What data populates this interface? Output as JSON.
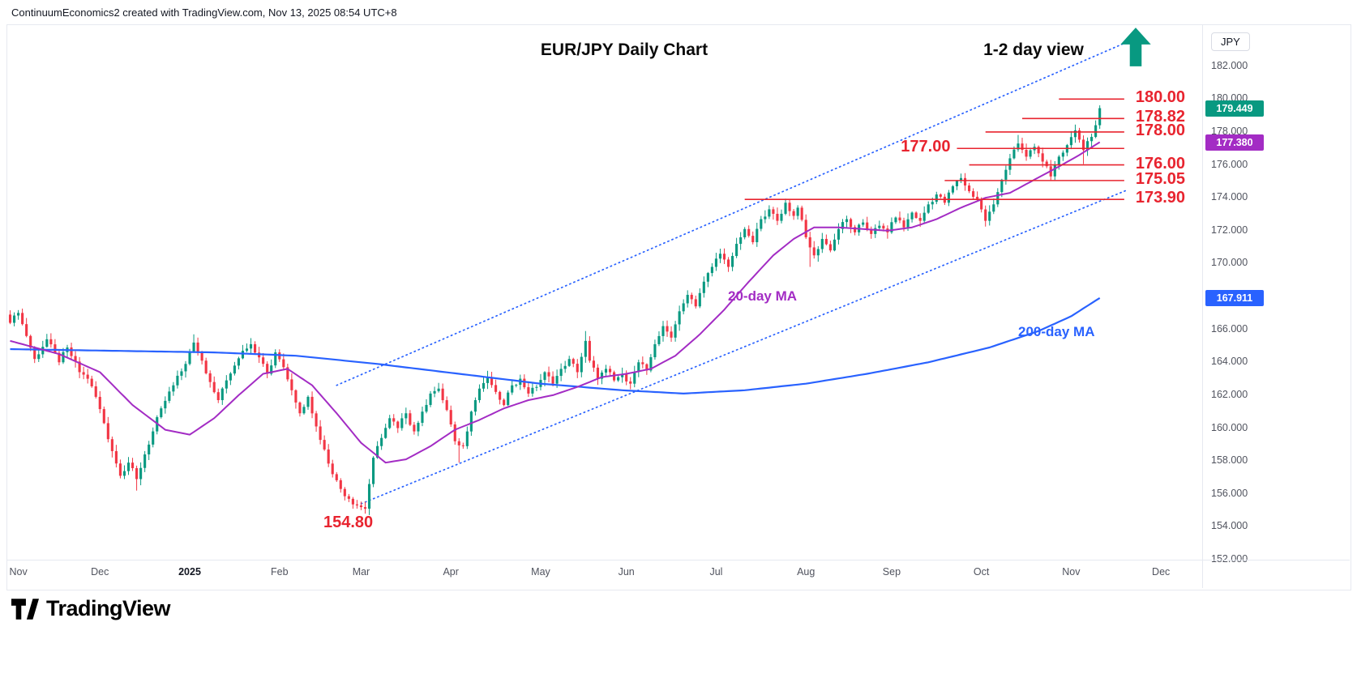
{
  "header": {
    "attribution": "ContinuumEconomics2 created with TradingView.com, Nov 13, 2025 08:54 UTC+8"
  },
  "chart": {
    "title": "EUR/JPY Daily Chart",
    "view_note": "1-2 day view",
    "ma20_label": "20-day MA",
    "ma200_label": "200-day MA",
    "low_label": "154.80",
    "currency": "JPY"
  },
  "footer": {
    "logo_text": "TradingView"
  },
  "colors": {
    "up": "#089981",
    "down": "#f23645",
    "ma20": "#a32cc4",
    "ma200": "#2962ff",
    "trend": "#2962ff",
    "level": "#e8242f",
    "axis_text": "#50535e"
  },
  "axis_badges": [
    {
      "name": "last-price-badge",
      "label": "179.449",
      "price": 179.449,
      "color": "#089981"
    },
    {
      "name": "ma20-value-badge",
      "label": "177.380",
      "price": 177.38,
      "color": "#a32cc4"
    },
    {
      "name": "ma200-value-badge",
      "label": "167.911",
      "price": 167.911,
      "color": "#2962ff"
    }
  ],
  "chart_data": {
    "type": "candlestick",
    "symbol": "EUR/JPY",
    "timeframe": "Daily",
    "last_price": 179.449,
    "ma20_value": 177.38,
    "ma200_value": 167.911,
    "key_low": 154.8,
    "y_axis": {
      "min": 152,
      "max": 184.3,
      "ticks": [
        182,
        180,
        178,
        176,
        174,
        172,
        170,
        168,
        166,
        164,
        162,
        160,
        158,
        156,
        154,
        152
      ]
    },
    "x_labels": [
      {
        "label": "Nov",
        "day": 2
      },
      {
        "label": "Dec",
        "day": 22
      },
      {
        "label": "2025",
        "day": 44,
        "bold": true
      },
      {
        "label": "Feb",
        "day": 66
      },
      {
        "label": "Mar",
        "day": 86
      },
      {
        "label": "Apr",
        "day": 108
      },
      {
        "label": "May",
        "day": 130
      },
      {
        "label": "Jun",
        "day": 151
      },
      {
        "label": "Jul",
        "day": 173
      },
      {
        "label": "Aug",
        "day": 195
      },
      {
        "label": "Sep",
        "day": 216
      },
      {
        "label": "Oct",
        "day": 238
      },
      {
        "label": "Nov",
        "day": 260
      },
      {
        "label": "Dec",
        "day": 282
      }
    ],
    "days_total": 292,
    "last_day": 267,
    "first_open": 166.9,
    "close_anchors": [
      [
        0,
        166.4
      ],
      [
        2,
        167.0
      ],
      [
        4,
        165.6
      ],
      [
        6,
        164.2
      ],
      [
        9,
        165.4
      ],
      [
        12,
        164.0
      ],
      [
        14,
        164.9
      ],
      [
        17,
        163.4
      ],
      [
        19,
        163.0
      ],
      [
        21,
        161.9
      ],
      [
        23,
        160.3
      ],
      [
        25,
        158.6
      ],
      [
        27,
        157.1
      ],
      [
        29,
        157.9
      ],
      [
        31,
        156.9
      ],
      [
        33,
        158.4
      ],
      [
        35,
        159.8
      ],
      [
        37,
        161.2
      ],
      [
        40,
        162.6
      ],
      [
        43,
        163.9
      ],
      [
        45,
        165.2
      ],
      [
        47,
        164.1
      ],
      [
        49,
        162.8
      ],
      [
        51,
        161.7
      ],
      [
        53,
        162.9
      ],
      [
        55,
        163.8
      ],
      [
        57,
        164.7
      ],
      [
        59,
        165.1
      ],
      [
        61,
        164.3
      ],
      [
        63,
        163.3
      ],
      [
        65,
        164.6
      ],
      [
        67,
        163.7
      ],
      [
        69,
        162.3
      ],
      [
        71,
        160.9
      ],
      [
        73,
        161.9
      ],
      [
        75,
        160.1
      ],
      [
        77,
        158.7
      ],
      [
        79,
        157.2
      ],
      [
        81,
        156.3
      ],
      [
        83,
        155.7
      ],
      [
        85,
        155.3
      ],
      [
        87,
        155.1
      ],
      [
        88,
        156.6
      ],
      [
        89,
        158.2
      ],
      [
        91,
        159.4
      ],
      [
        93,
        160.6
      ],
      [
        95,
        160.0
      ],
      [
        97,
        160.9
      ],
      [
        99,
        159.8
      ],
      [
        101,
        161.0
      ],
      [
        103,
        162.1
      ],
      [
        105,
        162.4
      ],
      [
        107,
        161.1
      ],
      [
        109,
        159.2
      ],
      [
        111,
        158.9
      ],
      [
        113,
        161.0
      ],
      [
        115,
        162.4
      ],
      [
        117,
        163.1
      ],
      [
        119,
        162.2
      ],
      [
        121,
        161.4
      ],
      [
        123,
        162.6
      ],
      [
        125,
        163.0
      ],
      [
        127,
        162.1
      ],
      [
        129,
        162.5
      ],
      [
        131,
        163.4
      ],
      [
        133,
        162.7
      ],
      [
        135,
        163.6
      ],
      [
        137,
        164.2
      ],
      [
        139,
        163.4
      ],
      [
        141,
        165.3
      ],
      [
        142,
        164.1
      ],
      [
        144,
        163.0
      ],
      [
        146,
        163.6
      ],
      [
        148,
        162.9
      ],
      [
        150,
        163.3
      ],
      [
        152,
        162.7
      ],
      [
        154,
        164.0
      ],
      [
        156,
        163.5
      ],
      [
        158,
        165.1
      ],
      [
        160,
        166.2
      ],
      [
        162,
        165.5
      ],
      [
        164,
        167.1
      ],
      [
        166,
        168.1
      ],
      [
        168,
        167.4
      ],
      [
        170,
        168.9
      ],
      [
        172,
        169.8
      ],
      [
        174,
        170.6
      ],
      [
        176,
        169.8
      ],
      [
        178,
        171.2
      ],
      [
        180,
        172.1
      ],
      [
        182,
        171.3
      ],
      [
        184,
        172.7
      ],
      [
        186,
        173.3
      ],
      [
        188,
        172.6
      ],
      [
        190,
        173.7
      ],
      [
        192,
        172.9
      ],
      [
        193,
        173.4
      ],
      [
        195,
        171.6
      ],
      [
        197,
        170.5
      ],
      [
        199,
        171.5
      ],
      [
        201,
        170.8
      ],
      [
        203,
        172.1
      ],
      [
        205,
        172.7
      ],
      [
        207,
        171.9
      ],
      [
        209,
        172.5
      ],
      [
        211,
        171.8
      ],
      [
        213,
        172.3
      ],
      [
        215,
        171.9
      ],
      [
        217,
        172.8
      ],
      [
        219,
        172.2
      ],
      [
        221,
        173.1
      ],
      [
        223,
        172.6
      ],
      [
        225,
        173.6
      ],
      [
        227,
        174.2
      ],
      [
        229,
        173.7
      ],
      [
        231,
        174.7
      ],
      [
        233,
        175.2
      ],
      [
        235,
        174.4
      ],
      [
        237,
        173.9
      ],
      [
        239,
        172.6
      ],
      [
        241,
        173.6
      ],
      [
        243,
        175.1
      ],
      [
        245,
        176.4
      ],
      [
        247,
        177.3
      ],
      [
        249,
        176.5
      ],
      [
        251,
        177.1
      ],
      [
        253,
        176.2
      ],
      [
        255,
        175.3
      ],
      [
        257,
        176.5
      ],
      [
        259,
        177.2
      ],
      [
        261,
        178.1
      ],
      [
        263,
        176.9
      ],
      [
        265,
        177.7
      ],
      [
        267,
        179.449
      ]
    ],
    "spike_lows": [
      [
        31,
        156.2
      ],
      [
        87,
        154.8
      ],
      [
        110,
        157.9
      ],
      [
        196,
        169.8
      ],
      [
        239,
        172.25
      ],
      [
        263,
        176.05
      ]
    ],
    "spike_highs": [
      [
        45,
        165.7
      ],
      [
        141,
        165.9
      ],
      [
        190,
        173.92
      ],
      [
        233,
        175.4
      ],
      [
        247,
        177.82
      ],
      [
        261,
        178.45
      ],
      [
        267,
        179.62
      ]
    ],
    "ma20_anchors": [
      [
        0,
        165.3
      ],
      [
        12,
        164.5
      ],
      [
        22,
        163.4
      ],
      [
        30,
        161.4
      ],
      [
        38,
        159.9
      ],
      [
        44,
        159.6
      ],
      [
        50,
        160.6
      ],
      [
        56,
        162.0
      ],
      [
        62,
        163.3
      ],
      [
        68,
        163.6
      ],
      [
        74,
        162.6
      ],
      [
        80,
        160.9
      ],
      [
        86,
        159.1
      ],
      [
        92,
        157.9
      ],
      [
        97,
        158.1
      ],
      [
        103,
        158.9
      ],
      [
        109,
        159.9
      ],
      [
        115,
        160.5
      ],
      [
        121,
        161.2
      ],
      [
        127,
        161.7
      ],
      [
        133,
        162.0
      ],
      [
        139,
        162.5
      ],
      [
        145,
        163.1
      ],
      [
        151,
        163.3
      ],
      [
        157,
        163.6
      ],
      [
        163,
        164.4
      ],
      [
        169,
        165.7
      ],
      [
        175,
        167.2
      ],
      [
        181,
        168.9
      ],
      [
        187,
        170.5
      ],
      [
        192,
        171.5
      ],
      [
        197,
        172.2
      ],
      [
        203,
        172.2
      ],
      [
        209,
        172.1
      ],
      [
        215,
        172.0
      ],
      [
        221,
        172.2
      ],
      [
        227,
        172.7
      ],
      [
        233,
        173.4
      ],
      [
        239,
        174.0
      ],
      [
        245,
        174.3
      ],
      [
        251,
        175.1
      ],
      [
        257,
        175.9
      ],
      [
        262,
        176.6
      ],
      [
        267,
        177.38
      ]
    ],
    "ma200_anchors": [
      [
        0,
        164.8
      ],
      [
        25,
        164.7
      ],
      [
        50,
        164.6
      ],
      [
        70,
        164.4
      ],
      [
        90,
        163.9
      ],
      [
        110,
        163.3
      ],
      [
        130,
        162.7
      ],
      [
        150,
        162.3
      ],
      [
        165,
        162.1
      ],
      [
        180,
        162.3
      ],
      [
        195,
        162.7
      ],
      [
        210,
        163.3
      ],
      [
        225,
        164.0
      ],
      [
        240,
        164.9
      ],
      [
        252,
        165.9
      ],
      [
        260,
        166.8
      ],
      [
        267,
        167.911
      ]
    ],
    "trendlines": [
      {
        "from_day": 80,
        "from_price": 162.6,
        "to_day": 274,
        "to_price": 183.5
      },
      {
        "from_day": 86,
        "from_price": 155.4,
        "to_day": 274,
        "to_price": 174.5
      }
    ],
    "levels": [
      {
        "label": "180.00",
        "price": 180.0,
        "from_day": 257,
        "to_day": 273,
        "label_side": "right"
      },
      {
        "label": "178.82",
        "price": 178.82,
        "from_day": 248,
        "to_day": 273,
        "label_side": "right"
      },
      {
        "label": "178.00",
        "price": 178.0,
        "from_day": 239,
        "to_day": 273,
        "label_side": "right"
      },
      {
        "label": "177.00",
        "price": 177.0,
        "from_day": 232,
        "to_day": 273,
        "label_side": "left"
      },
      {
        "label": "176.00",
        "price": 176.0,
        "from_day": 235,
        "to_day": 273,
        "label_side": "right"
      },
      {
        "label": "175.05",
        "price": 175.05,
        "from_day": 229,
        "to_day": 273,
        "label_side": "right"
      },
      {
        "label": "173.90",
        "price": 173.9,
        "from_day": 180,
        "to_day": 273,
        "label_side": "right"
      }
    ]
  }
}
